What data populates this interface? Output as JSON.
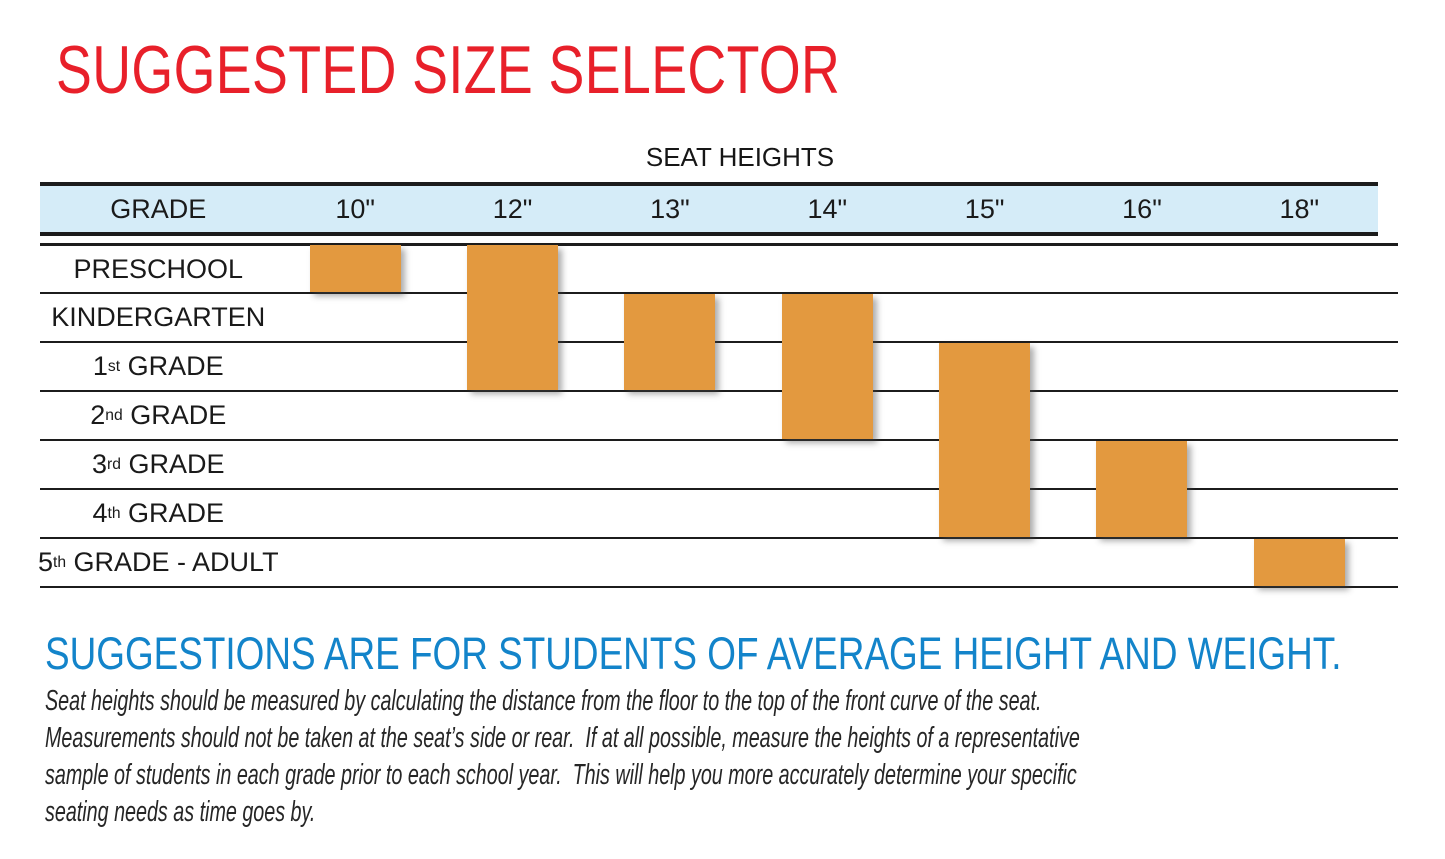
{
  "page": {
    "title": "SUGGESTED SIZE SELECTOR",
    "title_color": "#e8202a"
  },
  "chart_data": {
    "type": "gantt",
    "title": "SEAT HEIGHTS",
    "corner_header": "GRADE",
    "columns": [
      "10\"",
      "12\"",
      "13\"",
      "14\"",
      "15\"",
      "16\"",
      "18\""
    ],
    "rows": [
      {
        "parts": [
          "PRESCHOOL"
        ]
      },
      {
        "parts": [
          "KINDERGARTEN"
        ]
      },
      {
        "parts": [
          "1",
          "st",
          " GRADE"
        ]
      },
      {
        "parts": [
          "2",
          "nd",
          " GRADE"
        ]
      },
      {
        "parts": [
          "3",
          "rd",
          " GRADE"
        ]
      },
      {
        "parts": [
          "4",
          "th",
          " GRADE"
        ]
      },
      {
        "parts": [
          "5",
          "th",
          " GRADE - ADULT"
        ]
      }
    ],
    "bars": [
      {
        "column": "10\"",
        "from": "PRESCHOOL",
        "to": "PRESCHOOL"
      },
      {
        "column": "12\"",
        "from": "PRESCHOOL",
        "to": "1st GRADE"
      },
      {
        "column": "13\"",
        "from": "KINDERGARTEN",
        "to": "1st GRADE"
      },
      {
        "column": "14\"",
        "from": "KINDERGARTEN",
        "to": "2nd GRADE"
      },
      {
        "column": "15\"",
        "from": "1st GRADE",
        "to": "4th GRADE"
      },
      {
        "column": "16\"",
        "from": "3rd GRADE",
        "to": "4th GRADE"
      },
      {
        "column": "18\"",
        "from": "5th GRADE - ADULT",
        "to": "5th GRADE - ADULT"
      }
    ],
    "bar_color": "#e3993f",
    "header_bg": "#d5ecf8",
    "legend_position": "none",
    "grid": true
  },
  "footer": {
    "heading": "SUGGESTIONS ARE FOR STUDENTS OF AVERAGE HEIGHT AND WEIGHT.",
    "heading_color": "#1384ca",
    "body": "Seat heights should be measured by calculating the distance from the floor to the top of the front curve of the seat.\nMeasurements should not be taken at the seat’s side or rear.  If at all possible, measure the heights of a representative\nsample of students in each grade prior to each school year.  This will help you more accurately determine your specific\nseating needs as time goes by."
  }
}
